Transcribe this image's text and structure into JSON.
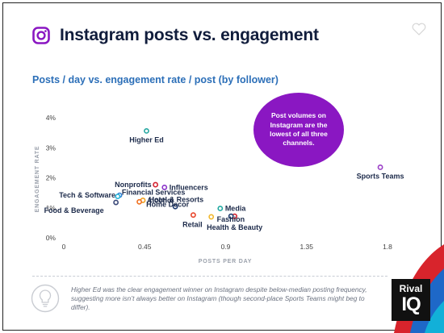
{
  "header": {
    "title": "Instagram posts vs. engagement",
    "icon": "instagram-icon"
  },
  "chart_data": {
    "type": "scatter",
    "title": "Instagram posts vs. engagement",
    "subtitle": "Posts / day vs. engagement rate / post (by follower)",
    "xlabel": "POSTS PER DAY",
    "ylabel": "ENGAGEMENT RATE",
    "xlim": [
      0,
      1.8
    ],
    "ylim": [
      0,
      4
    ],
    "x_ticks": [
      "0",
      "0.45",
      "0.9",
      "1.35",
      "1.8"
    ],
    "y_ticks": [
      "0%",
      "1%",
      "2%",
      "3%",
      "4%"
    ],
    "grid": false,
    "points": [
      {
        "label": "Higher Ed",
        "x": 0.46,
        "y": 3.56,
        "color": "#23a6a0"
      },
      {
        "label": "Sports Teams",
        "x": 1.76,
        "y": 2.35,
        "color": "#9b3fc7"
      },
      {
        "label": "Nonprofits",
        "x": 0.51,
        "y": 1.77,
        "color": "#d4202e"
      },
      {
        "label": "Influencers",
        "x": 0.56,
        "y": 1.68,
        "color": "#8b35c9"
      },
      {
        "label": "Tech & Software",
        "x": 0.31,
        "y": 1.42,
        "color": "#2f7fd6"
      },
      {
        "label": "Financial Services",
        "x": 0.3,
        "y": 1.38,
        "color": "#1fb0d6"
      },
      {
        "label": "Alcohol",
        "x": 0.44,
        "y": 1.25,
        "color": "#f0a020"
      },
      {
        "label": "Hotel & Resorts",
        "x": 0.42,
        "y": 1.2,
        "color": "#f07020"
      },
      {
        "label": "Food & Beverage",
        "x": 0.29,
        "y": 1.18,
        "color": "#3c4a7a"
      },
      {
        "label": "Home Decor",
        "x": 0.62,
        "y": 1.04,
        "color": "#1e3a6e"
      },
      {
        "label": "Media",
        "x": 0.87,
        "y": 0.98,
        "color": "#20a8a0"
      },
      {
        "label": "Retail",
        "x": 0.72,
        "y": 0.76,
        "color": "#e8452a"
      },
      {
        "label": "Fashion",
        "x": 0.82,
        "y": 0.7,
        "color": "#f2b82c"
      },
      {
        "label": "Health & Beauty",
        "x": 0.95,
        "y": 0.72,
        "color": "#d4202e"
      },
      {
        "label": "",
        "x": 0.93,
        "y": 0.72,
        "color": "#1e3a6e"
      }
    ]
  },
  "annotation": {
    "text": "Post volumes on Instagram are the lowest of all three channels."
  },
  "footnote": {
    "text": "Higher Ed was the clear engagement winner on Instagram despite below-median posting frequency, suggesting more isn’t always better on Instagram (though second-place Sports Teams might beg to differ)."
  },
  "brand": {
    "line1": "Rival",
    "line2": "IQ"
  },
  "colors": {
    "title": "#111d3c",
    "subtitle": "#2c6fb8",
    "bubble": "#8a17c2"
  }
}
